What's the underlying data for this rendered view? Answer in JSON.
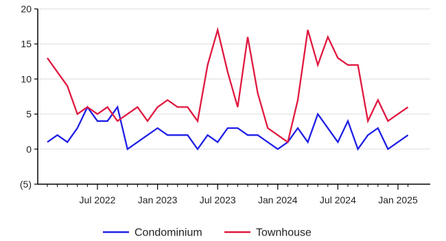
{
  "chart_data": {
    "type": "line",
    "title": "",
    "xlabel": "",
    "ylabel": "",
    "ylim": [
      -5,
      20
    ],
    "y_ticks": [
      {
        "value": 20,
        "label": "20"
      },
      {
        "value": 15,
        "label": "15"
      },
      {
        "value": 10,
        "label": "10"
      },
      {
        "value": 5,
        "label": "5"
      },
      {
        "value": 0,
        "label": "0"
      },
      {
        "value": -5,
        "label": "(5)"
      }
    ],
    "x_ticks": [
      {
        "index": 5,
        "label": "Jul 2022"
      },
      {
        "index": 11,
        "label": "Jan 2023"
      },
      {
        "index": 17,
        "label": "Jul 2023"
      },
      {
        "index": 23,
        "label": "Jan 2024"
      },
      {
        "index": 29,
        "label": "Jul 2024"
      },
      {
        "index": 35,
        "label": "Jan 2025"
      }
    ],
    "x": [
      "Feb 2022",
      "Mar 2022",
      "Apr 2022",
      "May 2022",
      "Jun 2022",
      "Jul 2022",
      "Aug 2022",
      "Sep 2022",
      "Oct 2022",
      "Nov 2022",
      "Dec 2022",
      "Jan 2023",
      "Feb 2023",
      "Mar 2023",
      "Apr 2023",
      "May 2023",
      "Jun 2023",
      "Jul 2023",
      "Aug 2023",
      "Sep 2023",
      "Oct 2023",
      "Nov 2023",
      "Dec 2023",
      "Jan 2024",
      "Feb 2024",
      "Mar 2024",
      "Apr 2024",
      "May 2024",
      "Jun 2024",
      "Jul 2024",
      "Aug 2024",
      "Sep 2024",
      "Oct 2024",
      "Nov 2024",
      "Dec 2024",
      "Jan 2025",
      "Feb 2025"
    ],
    "series": [
      {
        "name": "Condominium",
        "color": "#1f1fe6",
        "values": [
          1,
          2,
          1,
          3,
          6,
          4,
          4,
          6,
          0,
          1,
          2,
          3,
          2,
          2,
          2,
          0,
          2,
          1,
          3,
          3,
          2,
          2,
          1,
          0,
          1,
          3,
          1,
          5,
          3,
          1,
          4,
          0,
          2,
          3,
          0,
          1,
          2
        ]
      },
      {
        "name": "Townhouse",
        "color": "#e0183f",
        "values": [
          13,
          11,
          9,
          5,
          6,
          5,
          6,
          4,
          5,
          6,
          4,
          6,
          7,
          6,
          6,
          4,
          12,
          17,
          11,
          6,
          16,
          8,
          3,
          2,
          1,
          7,
          17,
          12,
          16,
          13,
          12,
          12,
          4,
          7,
          4,
          5,
          6
        ]
      }
    ],
    "grid": "horizontal",
    "legend": "bottom"
  }
}
